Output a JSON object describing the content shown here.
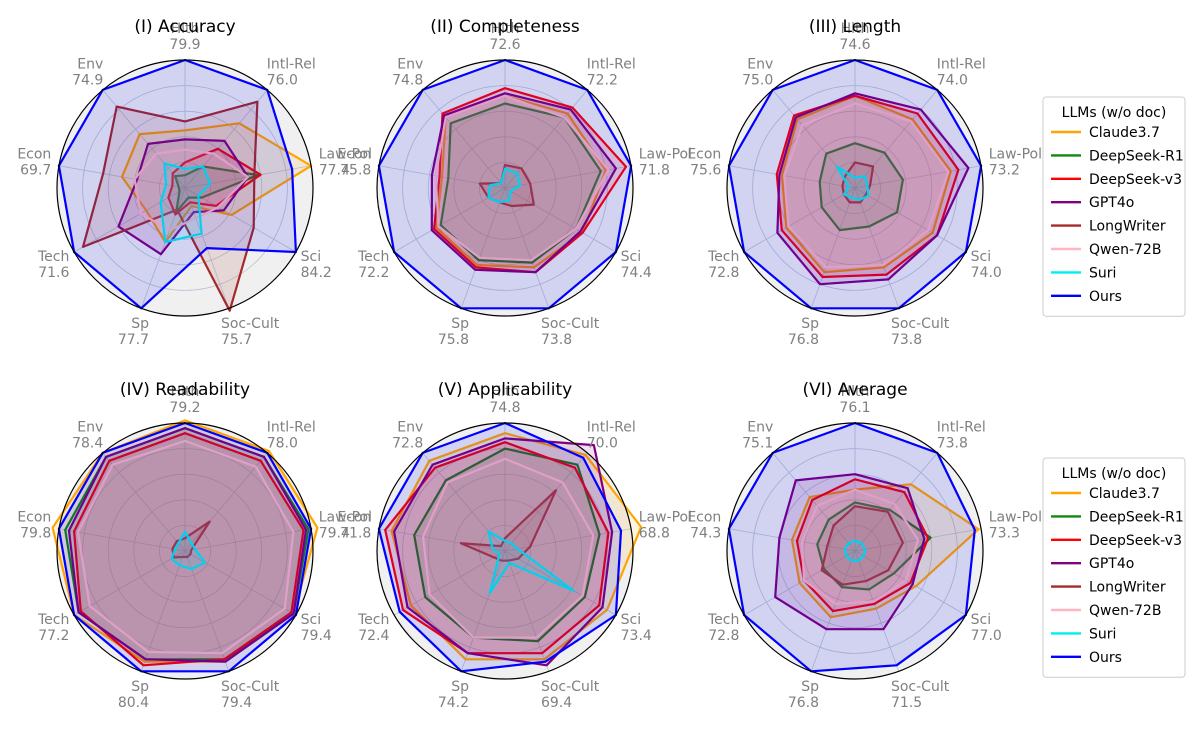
{
  "chart_data": {
    "type": "radar",
    "series_names": [
      "Claude3.7",
      "DeepSeek-R1",
      "DeepSeek-v3",
      "GPT4o",
      "LongWriter",
      "Qwen-72B",
      "Suri",
      "Ours"
    ],
    "series_colors": [
      "#ffa500",
      "#118811",
      "#ff0000",
      "#800080",
      "#a52a2a",
      "#ffb6c1",
      "#00eeee",
      "#0000ff"
    ],
    "axes": [
      "Econ",
      "Env",
      "Hlth",
      "Intl-Rel",
      "Law-Pol",
      "Sci",
      "Soc-Cult",
      "Sp",
      "Tech"
    ],
    "legend": {
      "title": "LLMs (w/o doc)",
      "placement": "right"
    },
    "panels": [
      {
        "title": "(I) Accuracy",
        "axis_max": [
          "69.7",
          "74.9",
          "79.9",
          "76.0",
          "77.4",
          "84.2",
          "75.7",
          "77.7",
          "71.6"
        ],
        "series": [
          {
            "name": "Claude3.7",
            "values": [
              0.5,
              0.55,
              0.45,
              0.66,
              1.0,
              0.42,
              0.15,
              0.45,
              0.35
            ]
          },
          {
            "name": "DeepSeek-R1",
            "values": [
              0.05,
              0.12,
              0.1,
              0.22,
              0.58,
              0.15,
              0.08,
              0.2,
              0.05
            ]
          },
          {
            "name": "DeepSeek-v3",
            "values": [
              0.1,
              0.15,
              0.2,
              0.4,
              0.6,
              0.28,
              0.12,
              0.22,
              0.15
            ]
          },
          {
            "name": "GPT4o",
            "values": [
              0.38,
              0.45,
              0.38,
              0.48,
              0.5,
              0.35,
              0.2,
              0.55,
              0.6
            ]
          },
          {
            "name": "LongWriter",
            "values": [
              0.65,
              0.83,
              0.52,
              0.88,
              0.55,
              0.62,
              1.02,
              0.18,
              0.92
            ]
          },
          {
            "name": "Qwen-72B",
            "values": [
              0.4,
              0.35,
              0.3,
              0.35,
              0.5,
              0.3,
              0.25,
              0.35,
              0.4
            ]
          },
          {
            "name": "Suri",
            "values": [
              0.15,
              0.25,
              0.15,
              0.22,
              0.2,
              0.12,
              0.38,
              0.45,
              0.22
            ]
          },
          {
            "name": "Ours",
            "values": [
              1.0,
              1.0,
              1.0,
              1.0,
              0.85,
              1.0,
              0.5,
              1.0,
              1.0
            ]
          }
        ]
      },
      {
        "title": "(II) Completeness",
        "axis_max": [
          "75.8",
          "74.8",
          "72.6",
          "72.2",
          "71.8",
          "74.4",
          "73.8",
          "75.8",
          "72.2"
        ],
        "series": [
          {
            "name": "Claude3.7",
            "values": [
              0.5,
              0.72,
              0.72,
              0.76,
              0.8,
              0.7,
              0.66,
              0.64,
              0.62
            ]
          },
          {
            "name": "DeepSeek-R1",
            "values": [
              0.45,
              0.66,
              0.66,
              0.72,
              0.76,
              0.64,
              0.62,
              0.6,
              0.58
            ]
          },
          {
            "name": "DeepSeek-v3",
            "values": [
              0.52,
              0.76,
              0.78,
              0.82,
              0.96,
              0.7,
              0.7,
              0.66,
              0.64
            ]
          },
          {
            "name": "GPT4o",
            "values": [
              0.58,
              0.74,
              0.74,
              0.8,
              0.88,
              0.68,
              0.7,
              0.68,
              0.66
            ]
          },
          {
            "name": "LongWriter",
            "values": [
              0.2,
              0.05,
              0.18,
              0.2,
              0.2,
              0.26,
              0.15,
              0.12,
              0.15
            ]
          },
          {
            "name": "Qwen-72B",
            "values": [
              0.55,
              0.72,
              0.72,
              0.72,
              0.82,
              0.64,
              0.6,
              0.58,
              0.6
            ]
          },
          {
            "name": "Suri",
            "values": [
              0.12,
              0.05,
              0.15,
              0.15,
              0.12,
              0.05,
              0.1,
              0.12,
              0.15
            ]
          },
          {
            "name": "Ours",
            "values": [
              1.0,
              1.0,
              1.0,
              1.0,
              1.0,
              1.0,
              1.0,
              1.0,
              1.0
            ]
          }
        ]
      },
      {
        "title": "(III) Length",
        "axis_max": [
          "75.6",
          "75.0",
          "74.6",
          "74.0",
          "73.2",
          "74.0",
          "73.8",
          "76.8",
          "72.8"
        ],
        "series": [
          {
            "name": "Claude3.7",
            "values": [
              0.58,
              0.7,
              0.72,
              0.7,
              0.76,
              0.7,
              0.66,
              0.7,
              0.62
            ]
          },
          {
            "name": "DeepSeek-R1",
            "values": [
              0.28,
              0.35,
              0.35,
              0.36,
              0.38,
              0.38,
              0.32,
              0.35,
              0.3
            ]
          },
          {
            "name": "DeepSeek-v3",
            "values": [
              0.62,
              0.74,
              0.72,
              0.76,
              0.82,
              0.74,
              0.72,
              0.74,
              0.66
            ]
          },
          {
            "name": "GPT4o",
            "values": [
              0.6,
              0.72,
              0.74,
              0.8,
              0.9,
              0.74,
              0.76,
              0.8,
              0.7
            ]
          },
          {
            "name": "LongWriter",
            "values": [
              0.1,
              0.12,
              0.2,
              0.22,
              0.12,
              0.1,
              0.12,
              0.12,
              0.1
            ]
          },
          {
            "name": "Qwen-72B",
            "values": [
              0.56,
              0.64,
              0.66,
              0.68,
              0.74,
              0.66,
              0.64,
              0.66,
              0.6
            ]
          },
          {
            "name": "Suri",
            "values": [
              0.05,
              0.22,
              0.08,
              0.12,
              0.1,
              0.12,
              0.1,
              0.08,
              0.1
            ]
          },
          {
            "name": "Ours",
            "values": [
              1.0,
              1.0,
              1.0,
              1.0,
              1.0,
              1.0,
              1.0,
              1.0,
              1.0
            ]
          }
        ]
      },
      {
        "title": "(IV) Readability",
        "axis_max": [
          "79.8",
          "78.4",
          "79.2",
          "78.0",
          "79.4",
          "79.4",
          "79.4",
          "80.4",
          "77.2"
        ],
        "series": [
          {
            "name": "Claude3.7",
            "values": [
              1.05,
              1.0,
              1.02,
              1.02,
              1.05,
              0.98,
              0.92,
              0.92,
              1.0
            ]
          },
          {
            "name": "DeepSeek-R1",
            "values": [
              0.95,
              0.96,
              0.96,
              0.96,
              0.98,
              0.98,
              0.9,
              0.9,
              0.96
            ]
          },
          {
            "name": "DeepSeek-v3",
            "values": [
              0.88,
              0.92,
              0.92,
              0.92,
              0.94,
              0.96,
              0.9,
              0.95,
              0.94
            ]
          },
          {
            "name": "GPT4o",
            "values": [
              0.92,
              0.96,
              0.96,
              0.96,
              0.96,
              0.98,
              0.92,
              0.9,
              0.96
            ]
          },
          {
            "name": "LongWriter",
            "values": [
              0.1,
              0.1,
              0.1,
              0.3,
              0.05,
              0.05,
              0.05,
              0.05,
              0.1
            ]
          },
          {
            "name": "Qwen-72B",
            "values": [
              0.85,
              0.88,
              0.86,
              0.86,
              0.86,
              0.9,
              0.85,
              0.84,
              0.86
            ]
          },
          {
            "name": "Suri",
            "values": [
              0.08,
              0.08,
              0.15,
              0.08,
              0.08,
              0.18,
              0.15,
              0.12,
              0.12
            ]
          },
          {
            "name": "Ours",
            "values": [
              1.0,
              1.0,
              1.0,
              1.0,
              1.0,
              1.0,
              1.0,
              1.0,
              1.0
            ]
          }
        ]
      },
      {
        "title": "(V) Applicability",
        "axis_max": [
          "71.8",
          "72.8",
          "74.8",
          "70.0",
          "68.8",
          "73.4",
          "69.4",
          "74.2",
          "72.4"
        ],
        "series": [
          {
            "name": "Claude3.7",
            "values": [
              0.9,
              0.92,
              0.92,
              0.98,
              1.08,
              0.92,
              0.9,
              0.9,
              0.85
            ]
          },
          {
            "name": "DeepSeek-R1",
            "values": [
              0.72,
              0.72,
              0.8,
              0.88,
              0.75,
              0.72,
              0.75,
              0.72,
              0.72
            ]
          },
          {
            "name": "DeepSeek-v3",
            "values": [
              0.95,
              0.85,
              0.85,
              0.85,
              0.82,
              0.85,
              0.85,
              0.85,
              0.92
            ]
          },
          {
            "name": "GPT4o",
            "values": [
              0.88,
              0.88,
              0.88,
              1.08,
              0.85,
              0.88,
              0.95,
              0.85,
              0.88
            ]
          },
          {
            "name": "LongWriter",
            "values": [
              0.35,
              0.05,
              0.1,
              0.62,
              0.2,
              0.12,
              0.08,
              0.08,
              0.1
            ]
          },
          {
            "name": "Qwen-72B",
            "values": [
              0.65,
              0.7,
              0.72,
              0.7,
              0.7,
              0.7,
              0.72,
              0.72,
              0.68
            ]
          },
          {
            "name": "Suri",
            "values": [
              0.1,
              0.2,
              0.08,
              0.08,
              0.1,
              0.62,
              0.1,
              0.35,
              0.05
            ]
          },
          {
            "name": "Ours",
            "values": [
              1.0,
              1.0,
              1.0,
              0.95,
              0.92,
              1.0,
              0.92,
              1.0,
              0.95
            ]
          }
        ]
      },
      {
        "title": "(VI) Average",
        "axis_max": [
          "74.3",
          "75.1",
          "76.1",
          "73.8",
          "73.3",
          "77.0",
          "71.5",
          "76.8",
          "72.8"
        ],
        "series": [
          {
            "name": "Claude3.7",
            "values": [
              0.5,
              0.55,
              0.48,
              0.68,
              0.98,
              0.55,
              0.48,
              0.55,
              0.5
            ]
          },
          {
            "name": "DeepSeek-R1",
            "values": [
              0.3,
              0.32,
              0.38,
              0.42,
              0.6,
              0.35,
              0.32,
              0.3,
              0.28
            ]
          },
          {
            "name": "DeepSeek-v3",
            "values": [
              0.46,
              0.52,
              0.56,
              0.6,
              0.58,
              0.5,
              0.44,
              0.5,
              0.46
            ]
          },
          {
            "name": "GPT4o",
            "values": [
              0.6,
              0.72,
              0.6,
              0.64,
              0.55,
              0.52,
              0.65,
              0.65,
              0.72
            ]
          },
          {
            "name": "LongWriter",
            "values": [
              0.22,
              0.26,
              0.35,
              0.4,
              0.38,
              0.3,
              0.25,
              0.28,
              0.3
            ]
          },
          {
            "name": "Qwen-72B",
            "values": [
              0.42,
              0.46,
              0.48,
              0.48,
              0.5,
              0.46,
              0.42,
              0.44,
              0.46
            ]
          },
          {
            "name": "Suri",
            "values": [
              0.08,
              0.08,
              0.08,
              0.08,
              0.08,
              0.08,
              0.08,
              0.08,
              0.08
            ]
          },
          {
            "name": "Ours",
            "values": [
              1.0,
              1.0,
              1.0,
              1.0,
              0.95,
              1.0,
              0.95,
              1.0,
              1.0
            ]
          }
        ]
      }
    ]
  }
}
